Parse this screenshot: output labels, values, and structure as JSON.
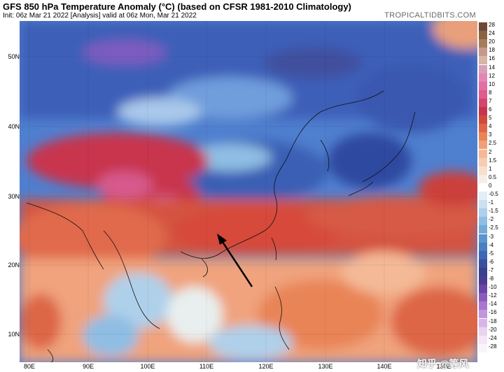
{
  "header": {
    "title": "GFS 850 hPa Temperature Anomaly (°C) (based on CFSR 1981-2010 Climatology)",
    "subtitle": "Init: 06z Mar 21 2022  [Analysis]  valid at 06z Mon, Mar 21 2022",
    "brand": "TROPICALTIDBITS.COM"
  },
  "map": {
    "lat_labels": [
      "50N",
      "40N",
      "30N",
      "20N",
      "10N"
    ],
    "lon_labels": [
      "80E",
      "90E",
      "100E",
      "110E",
      "120E",
      "130E",
      "140E",
      "150E"
    ],
    "annotation": "black-arrow pointing to south china"
  },
  "colorbar": {
    "labels": [
      "28",
      "24",
      "20",
      "18",
      "16",
      "14",
      "12",
      "10",
      "8",
      "7",
      "6",
      "5",
      "4",
      "3",
      "2.5",
      "2",
      "1.5",
      "1",
      "0.5",
      "0",
      "-0.5",
      "-1",
      "-1.5",
      "-2",
      "-2.5",
      "-3",
      "-4",
      "-5",
      "-6",
      "-7",
      "-8",
      "-10",
      "-12",
      "-14",
      "-16",
      "-18",
      "-20",
      "-24",
      "-28"
    ],
    "colors": [
      "#6b4a35",
      "#8a6345",
      "#a67c5a",
      "#c2998a",
      "#d7b3a8",
      "#d8a0b8",
      "#e486b2",
      "#e36ea3",
      "#de5b8e",
      "#d4466f",
      "#c8344d",
      "#d04a3c",
      "#dd6646",
      "#e98457",
      "#f0a077",
      "#f4b996",
      "#f6cdb2",
      "#f7dfcd",
      "#f8ede4",
      "#ffffff",
      "#e4eef6",
      "#cbe0f0",
      "#afd0ea",
      "#8fbde3",
      "#73aad9",
      "#5b95ce",
      "#4980c2",
      "#3f68b2",
      "#3a4f9e",
      "#39408c",
      "#4b3c91",
      "#6a45a5",
      "#8a5bbd",
      "#a777cd",
      "#c196dc",
      "#d7b6e7",
      "#e9d4f0",
      "#f3e6f6",
      "#f9f3fb"
    ]
  },
  "watermark": "知乎 @等风"
}
